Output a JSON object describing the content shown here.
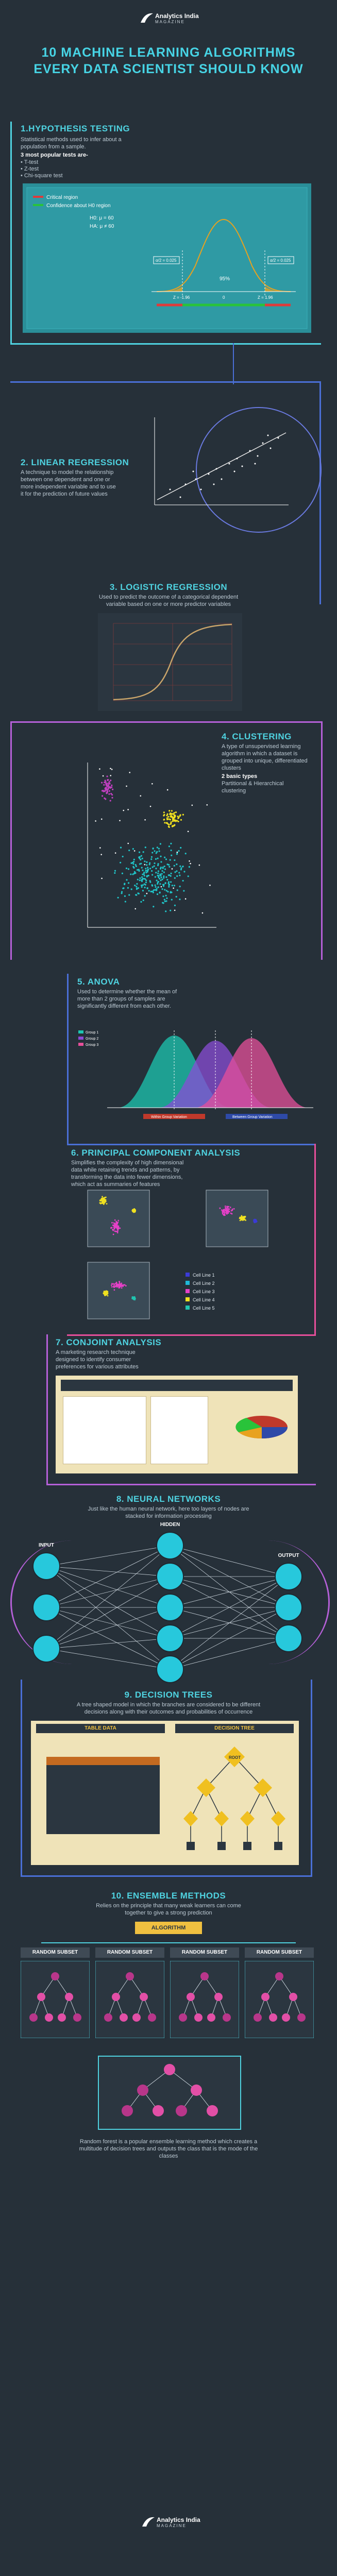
{
  "brand": {
    "name": "Analytics India",
    "sub": "MAGAZINE"
  },
  "header": {
    "line1": "10 MACHINE LEARNING ALGORITHMS",
    "line2": "EVERY DATA SCIENTIST SHOULD KNOW"
  },
  "s1": {
    "title": "1.HYPOTHESIS TESTING",
    "desc1": "Statistical methods used to infer about a population from a sample.",
    "desc2": "3 most popular tests are-",
    "tests": [
      "• T-test",
      "• Z-test",
      "• Chi-square test"
    ],
    "legend_critical": "Critical region",
    "legend_confidence": "Confidence about H0 region",
    "h0": "H0: μ = 60",
    "ha": "HA: μ ≠ 60",
    "alpha_left": "α/2 = 0.025",
    "alpha_right": "α/2 = 0.025",
    "conf_label": "95%",
    "z_left": "Z = -1.96",
    "z_mid": "0",
    "z_right": "Z = 1.96",
    "colors": {
      "critical": "#e03a3a",
      "confidence": "#29c33a",
      "curve": "#e8a21f"
    }
  },
  "s2": {
    "title": "2. LINEAR REGRESSION",
    "desc": "A technique to model the relationship between one dependent and one or more independent variable and to use it for the prediction of future values"
  },
  "s3": {
    "title": "3. LOGISTIC REGRESSION",
    "desc": "Used to predict the outcome of a categorical dependent variable based on one or more predictor variables"
  },
  "s4": {
    "title": "4. CLUSTERING",
    "desc": "A type of unsupervised learning algorithm in which a dataset is grouped into unique, differentiated clusters",
    "types_head": "2 basic types",
    "types": "Partitional & Hierarchical clustering"
  },
  "s5": {
    "title": "5. ANOVA",
    "desc": "Used to determine whether the mean of more than 2 groups of samples are significantly different from each other.",
    "legend": [
      "Group 1",
      "Group 2",
      "Group 3"
    ],
    "label_left": "Within Group Variation",
    "label_right": "Between Group Variation",
    "colors": [
      "#1cc6b0",
      "#8a4cd6",
      "#e64f9a"
    ]
  },
  "s6": {
    "title": "6. PRINCIPAL COMPONENT ANALYSIS",
    "desc": "Simplifies the complexity of high dimensional data while retaining trends and patterns, by transforming the data into fewer dimensions, which act as summaries of features",
    "legend": [
      "Cell Line 1",
      "Cell Line 2",
      "Cell Line 3",
      "Cell Line 4",
      "Cell Line 5"
    ],
    "colors": [
      "#3b3bd6",
      "#1fb8d8",
      "#e640c8",
      "#f0e120",
      "#20c4b0"
    ]
  },
  "s7": {
    "title": "7. CONJOINT ANALYSIS",
    "desc": "A marketing research technique designed to identify consumer preferences for various attributes"
  },
  "s8": {
    "title": "8. NEURAL NETWORKS",
    "desc": "Just like the human neural network, here too layers of nodes are stacked for information processing",
    "input": "INPUT",
    "hidden": "HIDDEN",
    "output": "OUTPUT"
  },
  "s9": {
    "title": "9. DECISION TREES",
    "desc": "A tree shaped model in which the branches are considered to be different decisions along with their outcomes and probabilities of occurrence",
    "table_label": "TABLE DATA",
    "tree_label": "DECISION TREE",
    "root_label": "ROOT"
  },
  "s10": {
    "title": "10. ENSEMBLE METHODS",
    "desc": "Relies on the principle that many weak learners can come together to give a strong prediction",
    "algo_label": "ALGORITHM",
    "subset_label": "RANDOM SUBSET",
    "footer_desc": "Random forest is a popular ensemble learning method which creates a multitude of decision trees and outputs the class that is the mode of the classes"
  }
}
